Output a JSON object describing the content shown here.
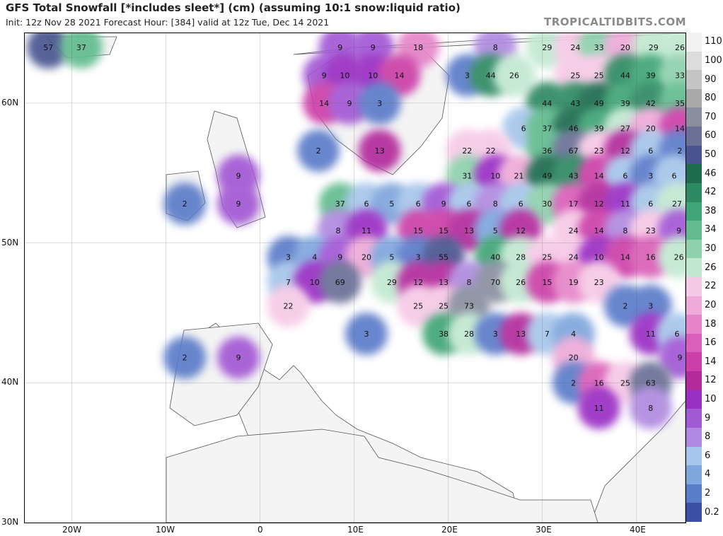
{
  "header": {
    "title": "GFS Total Snowfall [*includes sleet*] (cm) (assuming 10:1 snow:liquid ratio)",
    "subtitle": "Init: 12z Nov 28 2021   Forecast Hour: [384]   valid at 12z Tue, Dec 14 2021",
    "brand": "TROPICALTIDBITS.COM"
  },
  "axes": {
    "lat_labels": [
      "60N",
      "50N",
      "40N",
      "30N"
    ],
    "lon_labels": [
      "20W",
      "10W",
      "0",
      "10E",
      "20E",
      "30E",
      "40E"
    ]
  },
  "legend": {
    "items": [
      {
        "label": "110",
        "color": "#f2f2f2"
      },
      {
        "label": "100",
        "color": "#dcdcdc"
      },
      {
        "label": "90",
        "color": "#c4c4c4"
      },
      {
        "label": "80",
        "color": "#a8a8a8"
      },
      {
        "label": "70",
        "color": "#8a8fa0"
      },
      {
        "label": "60",
        "color": "#6b7096"
      },
      {
        "label": "50",
        "color": "#4a5590"
      },
      {
        "label": "46",
        "color": "#1f6b4f"
      },
      {
        "label": "42",
        "color": "#2e8a62"
      },
      {
        "label": "38",
        "color": "#3fa576"
      },
      {
        "label": "34",
        "color": "#62bb8f"
      },
      {
        "label": "30",
        "color": "#8fd1ad"
      },
      {
        "label": "26",
        "color": "#c2e8d1"
      },
      {
        "label": "22",
        "color": "#f6c9e6"
      },
      {
        "label": "20",
        "color": "#eeaad8"
      },
      {
        "label": "18",
        "color": "#e585c8"
      },
      {
        "label": "16",
        "color": "#da5fb8"
      },
      {
        "label": "14",
        "color": "#cc3fa8"
      },
      {
        "label": "12",
        "color": "#b22a9c"
      },
      {
        "label": "10",
        "color": "#9a2fc4"
      },
      {
        "label": "9",
        "color": "#a259d4"
      },
      {
        "label": "8",
        "color": "#b08ae0"
      },
      {
        "label": "6",
        "color": "#a6c6ea"
      },
      {
        "label": "4",
        "color": "#7fa6dd"
      },
      {
        "label": "2",
        "color": "#5b7cc9"
      },
      {
        "label": "0.2",
        "color": "#3a4ea8"
      }
    ]
  },
  "map_values": [
    {
      "text": "57",
      "lon": -22.5,
      "lat": 64.0
    },
    {
      "text": "37",
      "lon": -19.0,
      "lat": 64.0
    },
    {
      "text": "9",
      "lon": 8.5,
      "lat": 64.0
    },
    {
      "text": "9",
      "lon": 12.0,
      "lat": 64.0
    },
    {
      "text": "18",
      "lon": 16.8,
      "lat": 64.0
    },
    {
      "text": "8",
      "lon": 25.0,
      "lat": 64.0
    },
    {
      "text": "29",
      "lon": 30.5,
      "lat": 64.0
    },
    {
      "text": "24",
      "lon": 33.5,
      "lat": 64.0
    },
    {
      "text": "33",
      "lon": 36.0,
      "lat": 64.0
    },
    {
      "text": "20",
      "lon": 38.8,
      "lat": 64.0
    },
    {
      "text": "29",
      "lon": 41.8,
      "lat": 64.0
    },
    {
      "text": "26",
      "lon": 44.6,
      "lat": 64.0
    },
    {
      "text": "9",
      "lon": 6.8,
      "lat": 62.0
    },
    {
      "text": "10",
      "lon": 9.0,
      "lat": 62.0
    },
    {
      "text": "10",
      "lon": 12.0,
      "lat": 62.0
    },
    {
      "text": "14",
      "lon": 14.8,
      "lat": 62.0
    },
    {
      "text": "3",
      "lon": 22.0,
      "lat": 62.0
    },
    {
      "text": "44",
      "lon": 24.5,
      "lat": 62.0
    },
    {
      "text": "26",
      "lon": 27.0,
      "lat": 62.0
    },
    {
      "text": "25",
      "lon": 33.5,
      "lat": 62.0
    },
    {
      "text": "25",
      "lon": 36.0,
      "lat": 62.0
    },
    {
      "text": "44",
      "lon": 38.8,
      "lat": 62.0
    },
    {
      "text": "39",
      "lon": 41.5,
      "lat": 62.0
    },
    {
      "text": "33",
      "lon": 44.6,
      "lat": 62.0
    },
    {
      "text": "14",
      "lon": 6.8,
      "lat": 60.0
    },
    {
      "text": "9",
      "lon": 9.5,
      "lat": 60.0
    },
    {
      "text": "3",
      "lon": 12.7,
      "lat": 60.0
    },
    {
      "text": "44",
      "lon": 30.5,
      "lat": 60.0
    },
    {
      "text": "43",
      "lon": 33.5,
      "lat": 60.0
    },
    {
      "text": "49",
      "lon": 36.0,
      "lat": 60.0
    },
    {
      "text": "39",
      "lon": 38.8,
      "lat": 60.0
    },
    {
      "text": "42",
      "lon": 41.5,
      "lat": 60.0
    },
    {
      "text": "35",
      "lon": 44.6,
      "lat": 60.0
    },
    {
      "text": "6",
      "lon": 28.0,
      "lat": 58.2
    },
    {
      "text": "37",
      "lon": 30.5,
      "lat": 58.2
    },
    {
      "text": "46",
      "lon": 33.3,
      "lat": 58.2
    },
    {
      "text": "39",
      "lon": 36.0,
      "lat": 58.2
    },
    {
      "text": "27",
      "lon": 38.8,
      "lat": 58.2
    },
    {
      "text": "20",
      "lon": 41.5,
      "lat": 58.2
    },
    {
      "text": "14",
      "lon": 44.6,
      "lat": 58.2
    },
    {
      "text": "2",
      "lon": 6.2,
      "lat": 56.6
    },
    {
      "text": "13",
      "lon": 12.7,
      "lat": 56.6
    },
    {
      "text": "22",
      "lon": 22.0,
      "lat": 56.6
    },
    {
      "text": "22",
      "lon": 24.5,
      "lat": 56.6
    },
    {
      "text": "36",
      "lon": 30.5,
      "lat": 56.6
    },
    {
      "text": "67",
      "lon": 33.3,
      "lat": 56.6
    },
    {
      "text": "23",
      "lon": 36.0,
      "lat": 56.6
    },
    {
      "text": "12",
      "lon": 38.8,
      "lat": 56.6
    },
    {
      "text": "6",
      "lon": 41.5,
      "lat": 56.6
    },
    {
      "text": "2",
      "lon": 44.6,
      "lat": 56.6
    },
    {
      "text": "9",
      "lon": -2.3,
      "lat": 54.8
    },
    {
      "text": "31",
      "lon": 22.0,
      "lat": 54.8
    },
    {
      "text": "10",
      "lon": 25.0,
      "lat": 54.8
    },
    {
      "text": "21",
      "lon": 27.5,
      "lat": 54.8
    },
    {
      "text": "49",
      "lon": 30.5,
      "lat": 54.8
    },
    {
      "text": "43",
      "lon": 33.3,
      "lat": 54.8
    },
    {
      "text": "14",
      "lon": 36.0,
      "lat": 54.8
    },
    {
      "text": "6",
      "lon": 38.8,
      "lat": 54.8
    },
    {
      "text": "3",
      "lon": 41.5,
      "lat": 54.8
    },
    {
      "text": "6",
      "lon": 44.0,
      "lat": 54.8
    },
    {
      "text": "2",
      "lon": -8.0,
      "lat": 52.8
    },
    {
      "text": "9",
      "lon": -2.3,
      "lat": 52.8
    },
    {
      "text": "37",
      "lon": 8.5,
      "lat": 52.8
    },
    {
      "text": "6",
      "lon": 11.3,
      "lat": 52.8
    },
    {
      "text": "5",
      "lon": 14.0,
      "lat": 52.8
    },
    {
      "text": "6",
      "lon": 16.8,
      "lat": 52.8
    },
    {
      "text": "9",
      "lon": 19.5,
      "lat": 52.8
    },
    {
      "text": "6",
      "lon": 22.2,
      "lat": 52.8
    },
    {
      "text": "8",
      "lon": 25.0,
      "lat": 52.8
    },
    {
      "text": "6",
      "lon": 27.7,
      "lat": 52.8
    },
    {
      "text": "30",
      "lon": 30.5,
      "lat": 52.8
    },
    {
      "text": "17",
      "lon": 33.3,
      "lat": 52.8
    },
    {
      "text": "12",
      "lon": 36.0,
      "lat": 52.8
    },
    {
      "text": "11",
      "lon": 38.8,
      "lat": 52.8
    },
    {
      "text": "6",
      "lon": 41.5,
      "lat": 52.8
    },
    {
      "text": "27",
      "lon": 44.3,
      "lat": 52.8
    },
    {
      "text": "8",
      "lon": 8.3,
      "lat": 50.9
    },
    {
      "text": "11",
      "lon": 11.3,
      "lat": 50.9
    },
    {
      "text": "15",
      "lon": 16.8,
      "lat": 50.9
    },
    {
      "text": "15",
      "lon": 19.5,
      "lat": 50.9
    },
    {
      "text": "13",
      "lon": 22.2,
      "lat": 50.9
    },
    {
      "text": "5",
      "lon": 25.0,
      "lat": 50.9
    },
    {
      "text": "12",
      "lon": 27.7,
      "lat": 50.9
    },
    {
      "text": "24",
      "lon": 33.3,
      "lat": 50.9
    },
    {
      "text": "14",
      "lon": 36.0,
      "lat": 50.9
    },
    {
      "text": "8",
      "lon": 38.8,
      "lat": 50.9
    },
    {
      "text": "23",
      "lon": 41.5,
      "lat": 50.9
    },
    {
      "text": "9",
      "lon": 44.5,
      "lat": 50.9
    },
    {
      "text": "3",
      "lon": 3.0,
      "lat": 49.0
    },
    {
      "text": "4",
      "lon": 5.8,
      "lat": 49.0
    },
    {
      "text": "9",
      "lon": 8.5,
      "lat": 49.0
    },
    {
      "text": "20",
      "lon": 11.3,
      "lat": 49.0
    },
    {
      "text": "5",
      "lon": 14.0,
      "lat": 49.0
    },
    {
      "text": "3",
      "lon": 16.8,
      "lat": 49.0
    },
    {
      "text": "55",
      "lon": 19.5,
      "lat": 49.0
    },
    {
      "text": "40",
      "lon": 25.0,
      "lat": 49.0
    },
    {
      "text": "28",
      "lon": 27.7,
      "lat": 49.0
    },
    {
      "text": "25",
      "lon": 30.5,
      "lat": 49.0
    },
    {
      "text": "24",
      "lon": 33.3,
      "lat": 49.0
    },
    {
      "text": "10",
      "lon": 36.0,
      "lat": 49.0
    },
    {
      "text": "14",
      "lon": 38.8,
      "lat": 49.0
    },
    {
      "text": "16",
      "lon": 41.5,
      "lat": 49.0
    },
    {
      "text": "26",
      "lon": 44.5,
      "lat": 49.0
    },
    {
      "text": "7",
      "lon": 3.0,
      "lat": 47.2
    },
    {
      "text": "10",
      "lon": 5.8,
      "lat": 47.2
    },
    {
      "text": "69",
      "lon": 8.5,
      "lat": 47.2
    },
    {
      "text": "29",
      "lon": 14.0,
      "lat": 47.2
    },
    {
      "text": "12",
      "lon": 16.8,
      "lat": 47.2
    },
    {
      "text": "13",
      "lon": 19.5,
      "lat": 47.2
    },
    {
      "text": "8",
      "lon": 22.2,
      "lat": 47.2
    },
    {
      "text": "70",
      "lon": 25.0,
      "lat": 47.2
    },
    {
      "text": "26",
      "lon": 27.7,
      "lat": 47.2
    },
    {
      "text": "15",
      "lon": 30.5,
      "lat": 47.2
    },
    {
      "text": "19",
      "lon": 33.3,
      "lat": 47.2
    },
    {
      "text": "23",
      "lon": 36.0,
      "lat": 47.2
    },
    {
      "text": "22",
      "lon": 3.0,
      "lat": 45.5
    },
    {
      "text": "25",
      "lon": 16.8,
      "lat": 45.5
    },
    {
      "text": "25",
      "lon": 19.5,
      "lat": 45.5
    },
    {
      "text": "73",
      "lon": 22.2,
      "lat": 45.5
    },
    {
      "text": "2",
      "lon": 38.8,
      "lat": 45.5
    },
    {
      "text": "3",
      "lon": 41.5,
      "lat": 45.5
    },
    {
      "text": "3",
      "lon": 11.3,
      "lat": 43.5
    },
    {
      "text": "38",
      "lon": 19.5,
      "lat": 43.5
    },
    {
      "text": "28",
      "lon": 22.2,
      "lat": 43.5
    },
    {
      "text": "3",
      "lon": 25.0,
      "lat": 43.5
    },
    {
      "text": "13",
      "lon": 27.7,
      "lat": 43.5
    },
    {
      "text": "7",
      "lon": 30.5,
      "lat": 43.5
    },
    {
      "text": "4",
      "lon": 33.3,
      "lat": 43.5
    },
    {
      "text": "11",
      "lon": 41.5,
      "lat": 43.5
    },
    {
      "text": "6",
      "lon": 44.3,
      "lat": 43.5
    },
    {
      "text": "2",
      "lon": -8.0,
      "lat": 41.8
    },
    {
      "text": "9",
      "lon": -2.3,
      "lat": 41.8
    },
    {
      "text": "20",
      "lon": 33.3,
      "lat": 41.8
    },
    {
      "text": "9",
      "lon": 44.6,
      "lat": 41.8
    },
    {
      "text": "2",
      "lon": 33.3,
      "lat": 40.0
    },
    {
      "text": "16",
      "lon": 36.0,
      "lat": 40.0
    },
    {
      "text": "25",
      "lon": 38.8,
      "lat": 40.0
    },
    {
      "text": "63",
      "lon": 41.5,
      "lat": 40.0
    },
    {
      "text": "11",
      "lon": 36.0,
      "lat": 38.2
    },
    {
      "text": "8",
      "lon": 41.5,
      "lat": 38.2
    }
  ]
}
